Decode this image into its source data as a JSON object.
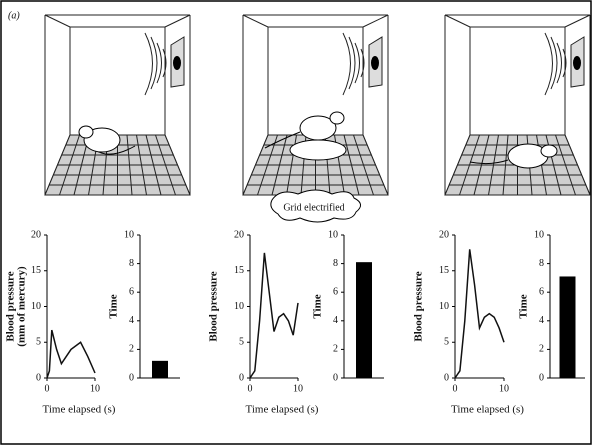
{
  "panel_label": "(a)",
  "annotation": "Grid electrified",
  "chart_data": [
    {
      "type": "line",
      "ylabel": [
        "Blood pressure",
        "(mm of mercury)"
      ],
      "xlabel": "Time elapsed (s)",
      "x": [
        0,
        0.5,
        1,
        2,
        3,
        5,
        7,
        8.5,
        10
      ],
      "values": [
        0,
        1,
        6.7,
        4,
        2,
        4,
        5,
        3,
        0.7
      ],
      "xlim": [
        0,
        10
      ],
      "xticks": [
        0,
        10
      ],
      "ylim": [
        0,
        20
      ],
      "yticks": [
        0,
        5,
        10,
        15,
        20
      ],
      "color": "#111111"
    },
    {
      "type": "bar",
      "ylabel": "Time",
      "categories": [
        null
      ],
      "values": [
        1.2
      ],
      "ylim": [
        0,
        10
      ],
      "yticks": [
        0,
        2,
        4,
        6,
        8,
        10
      ],
      "color": "#000000"
    },
    {
      "type": "line",
      "ylabel": [
        "Blood pressure"
      ],
      "xlabel": "Time elapsed (s)",
      "x": [
        0,
        1,
        2,
        3,
        4,
        5,
        6,
        7,
        8,
        9,
        10
      ],
      "values": [
        0,
        1,
        8,
        17.5,
        12,
        6.5,
        8.5,
        9,
        8,
        6,
        10.5
      ],
      "xlim": [
        0,
        10
      ],
      "xticks": [
        0,
        10
      ],
      "ylim": [
        0,
        20
      ],
      "yticks": [
        0,
        5,
        10,
        15,
        20
      ],
      "color": "#111111"
    },
    {
      "type": "bar",
      "ylabel": "Time",
      "categories": [
        null
      ],
      "values": [
        8.1
      ],
      "ylim": [
        0,
        10
      ],
      "yticks": [
        0,
        2,
        4,
        6,
        8,
        10
      ],
      "color": "#000000"
    },
    {
      "type": "line",
      "ylabel": [
        "Blood pressure"
      ],
      "xlabel": "Time elapsed (s)",
      "x": [
        0,
        1,
        2,
        3,
        4,
        5,
        6,
        7,
        8,
        9,
        10
      ],
      "values": [
        0,
        1,
        8,
        18,
        13,
        7,
        8.5,
        9,
        8.5,
        7,
        5
      ],
      "xlim": [
        0,
        10
      ],
      "xticks": [
        0,
        10
      ],
      "ylim": [
        0,
        20
      ],
      "yticks": [
        0,
        5,
        10,
        15,
        20
      ],
      "color": "#111111"
    },
    {
      "type": "bar",
      "ylabel": "Time",
      "categories": [
        null
      ],
      "values": [
        7.1
      ],
      "ylim": [
        0,
        10
      ],
      "yticks": [
        0,
        2,
        4,
        6,
        8,
        10
      ],
      "color": "#000000"
    }
  ]
}
